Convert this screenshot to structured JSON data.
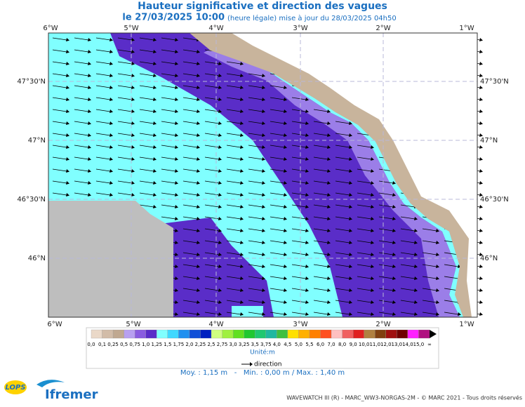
{
  "header": {
    "title": "Hauteur significative et direction des vagues",
    "date": "le 27/03/2025 10:00",
    "note": "(heure légale) mise à jour du 28/03/2025 04h50"
  },
  "axes": {
    "lon": [
      "6°W",
      "5°W",
      "4°W",
      "3°W",
      "2°W",
      "1°W"
    ],
    "lat": [
      "47°30'N",
      "47°N",
      "46°30'N",
      "46°N"
    ]
  },
  "colorbar": {
    "labels": [
      "0,0",
      "0,1",
      "0,25",
      "0,5",
      "0,75",
      "1,0",
      "1,25",
      "1,5",
      "1,75",
      "2,0",
      "2,25",
      "2,5",
      "2,75",
      "3,0",
      "3,25",
      "3,5",
      "3,75",
      "4,0",
      "4,5",
      "5,0",
      "5,5",
      "6,0",
      "7,0",
      "8,0",
      "9,0",
      "10,0",
      "11,0",
      "12,0",
      "13,0",
      "14,0",
      "15,0",
      "∞"
    ],
    "colors": [
      "#ead8c8",
      "#d2bca8",
      "#c0a890",
      "#b8a0f0",
      "#8a5ce0",
      "#5a2dc8",
      "#80ffff",
      "#40d8ff",
      "#2090f0",
      "#1050d8",
      "#0020c0",
      "#d0ff80",
      "#a0f040",
      "#60e020",
      "#20c830",
      "#20c870",
      "#20b8a0",
      "#40c040",
      "#ffe000",
      "#ffb000",
      "#ff8000",
      "#ff5020",
      "#ffc0c0",
      "#f06060",
      "#e02020",
      "#b08040",
      "#804010",
      "#a01010",
      "#700000",
      "#ff20ff",
      "#b01080"
    ],
    "unit": "Unité:m"
  },
  "legend": {
    "arrow": "direction"
  },
  "stats": "Moy. : 1,15 m   -   Min. : 0,00 m / Max. : 1,40 m",
  "footer": "WAVEWATCH III (R) - MARC_WW3-NORGAS-2M - © MARC 2021 - Tous droits réservés",
  "logos": {
    "lops": "LOPS",
    "ifremer": "Ifremer"
  }
}
